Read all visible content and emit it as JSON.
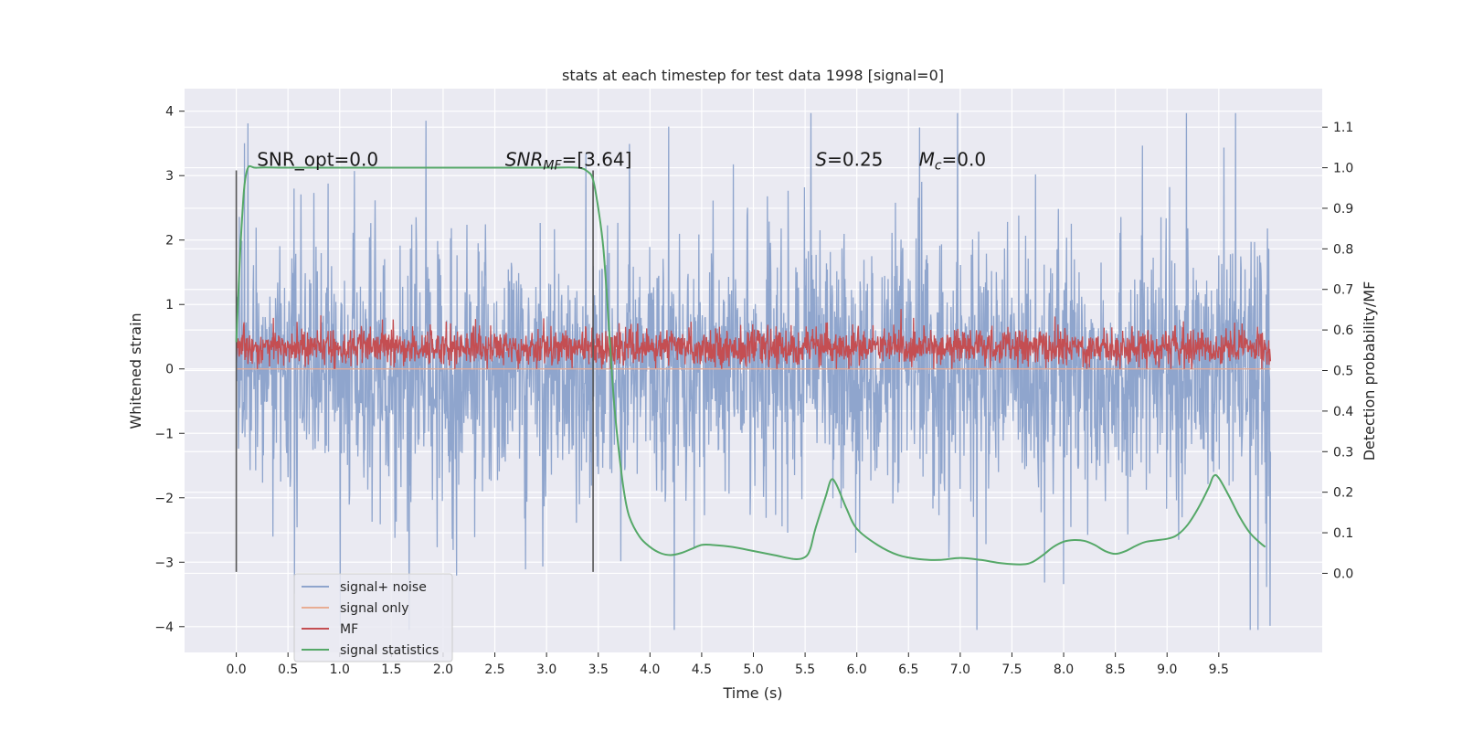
{
  "chart_data": {
    "type": "line",
    "title": "stats at each timestep for test data 1998 [signal=0]",
    "xlabel": "Time (s)",
    "ylabel_left": "Whitened strain",
    "ylabel_right": "Detection probability/MF",
    "xlim": [
      -0.5,
      10.5
    ],
    "ylim_left": [
      -4.4,
      4.35
    ],
    "ylim_right": [
      -0.195,
      1.195
    ],
    "x_ticks": [
      0.0,
      0.5,
      1.0,
      1.5,
      2.0,
      2.5,
      3.0,
      3.5,
      4.0,
      4.5,
      5.0,
      5.5,
      6.0,
      6.5,
      7.0,
      7.5,
      8.0,
      8.5,
      9.0,
      9.5
    ],
    "x_tick_labels": [
      "0.0",
      "0.5",
      "1.0",
      "1.5",
      "2.0",
      "2.5",
      "3.0",
      "3.5",
      "4.0",
      "4.5",
      "5.0",
      "5.5",
      "6.0",
      "6.5",
      "7.0",
      "7.5",
      "8.0",
      "8.5",
      "9.0",
      "9.5"
    ],
    "y_ticks_left": [
      -4,
      -3,
      -2,
      -1,
      0,
      1,
      2,
      3,
      4
    ],
    "y_tick_labels_left": [
      "−4",
      "−3",
      "−2",
      "−1",
      "0",
      "1",
      "2",
      "3",
      "4"
    ],
    "y_ticks_right": [
      0.0,
      0.1,
      0.2,
      0.3,
      0.4,
      0.5,
      0.6,
      0.7,
      0.8,
      0.9,
      1.0,
      1.1
    ],
    "y_tick_labels_right": [
      "0.0",
      "0.1",
      "0.2",
      "0.3",
      "0.4",
      "0.5",
      "0.6",
      "0.7",
      "0.8",
      "0.9",
      "1.0",
      "1.1"
    ],
    "grid": true,
    "legend_position": "bottom-left",
    "series": [
      {
        "name": "signal+ noise",
        "axis": "left",
        "color": "#8fa5cd",
        "x_range": [
          0.0,
          10.0
        ],
        "typical_range": [
          -1.6,
          1.9
        ],
        "extremes": [
          -4.05,
          3.97
        ]
      },
      {
        "name": "signal only",
        "axis": "left",
        "color": "#e8ad94",
        "x_range": [
          0.0,
          10.0
        ],
        "values_constant": 0.0
      },
      {
        "name": "MF",
        "axis": "left",
        "color": "#c44e52",
        "x_range": [
          0.0,
          10.0
        ],
        "typical_range": [
          0.05,
          0.6
        ],
        "extremes": [
          0.0,
          1.0
        ]
      },
      {
        "name": "signal statistics",
        "axis": "right",
        "color": "#55a868",
        "x": [
          0.0,
          0.05,
          0.1,
          0.2,
          0.5,
          1.0,
          1.5,
          2.0,
          2.5,
          3.0,
          3.3,
          3.4,
          3.45,
          3.5,
          3.55,
          3.6,
          3.65,
          3.7,
          3.75,
          3.8,
          3.9,
          4.0,
          4.1,
          4.2,
          4.3,
          4.4,
          4.5,
          4.6,
          4.8,
          5.0,
          5.2,
          5.4,
          5.5,
          5.55,
          5.6,
          5.7,
          5.75,
          5.8,
          5.9,
          6.0,
          6.2,
          6.4,
          6.6,
          6.8,
          7.0,
          7.2,
          7.4,
          7.6,
          7.7,
          7.8,
          7.9,
          8.0,
          8.1,
          8.2,
          8.3,
          8.4,
          8.5,
          8.6,
          8.7,
          8.8,
          9.0,
          9.1,
          9.2,
          9.3,
          9.4,
          9.45,
          9.5,
          9.6,
          9.7,
          9.8,
          9.9,
          9.95
        ],
        "y": [
          0.57,
          0.85,
          0.99,
          1.0,
          1.0,
          1.0,
          1.0,
          1.0,
          1.0,
          1.0,
          1.0,
          0.99,
          0.97,
          0.9,
          0.8,
          0.62,
          0.43,
          0.3,
          0.2,
          0.14,
          0.09,
          0.065,
          0.05,
          0.045,
          0.05,
          0.06,
          0.07,
          0.07,
          0.065,
          0.055,
          0.045,
          0.035,
          0.04,
          0.06,
          0.11,
          0.19,
          0.23,
          0.22,
          0.16,
          0.11,
          0.07,
          0.045,
          0.035,
          0.033,
          0.038,
          0.033,
          0.025,
          0.022,
          0.028,
          0.045,
          0.065,
          0.078,
          0.082,
          0.08,
          0.07,
          0.055,
          0.048,
          0.055,
          0.068,
          0.078,
          0.085,
          0.095,
          0.12,
          0.16,
          0.21,
          0.24,
          0.235,
          0.19,
          0.14,
          0.1,
          0.075,
          0.065
        ]
      }
    ],
    "vertical_lines": [
      {
        "x": 0.0,
        "ylim_left": [
          -3.15,
          3.08
        ],
        "color": "#555555"
      },
      {
        "x": 3.45,
        "ylim_left": [
          -3.15,
          3.08
        ],
        "color": "#555555"
      }
    ],
    "annotations": [
      {
        "key": "snr_opt",
        "text": "SNR_opt=0.0",
        "x": 0.2,
        "y": 3.15
      },
      {
        "key": "snr_mf",
        "base": "SNR",
        "sub": "MF",
        "suffix": "=[3.64]",
        "x": 2.6,
        "y": 3.15
      },
      {
        "key": "s",
        "base": "S",
        "suffix": "=0.25",
        "x": 5.6,
        "y": 3.15
      },
      {
        "key": "mc",
        "base": "M",
        "sub": "c",
        "suffix": "=0.0",
        "x": 6.6,
        "y": 3.15
      }
    ]
  }
}
